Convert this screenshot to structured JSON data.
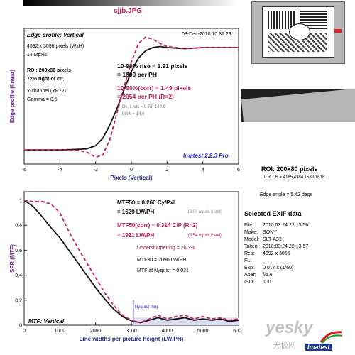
{
  "file_title": "cjjb.JPG",
  "edge": {
    "panel_title": "Edge profile: Vertical",
    "date": "03-Dec-2010 10:31:23",
    "dims": "4592 x 3056 pixels (WxH)",
    "mpxls": "14 Mpxls",
    "roi": "ROI: 200x80 pixels",
    "pos": "72% right of ctr.",
    "channel": "Y-channel  (YR72)",
    "gamma": "Gamma = 0.5",
    "rise1": "10-90% rise = 1.91 pixels",
    "rise2": "= 1600 per PH",
    "corr1": "10-90%(corr) = 1.49 pixels",
    "corr2": "= 2054 per PH  (R=2)",
    "dk": "Dk, lt lvls = 9.78, 142.9",
    "ltdk": "Lt/dk = 14.6",
    "brand": "Imatest 2.2.3 Pro",
    "xlabel": "Pixels (Vertical)",
    "ylabel": "Edge profile (linear)"
  },
  "mtf": {
    "panel_title": "MTF: Vertical",
    "mtf50": "MTF50 = 0.266 Cy/Pxl",
    "mtf50b": "= 1629 LW/PH",
    "ideal1": "[3.99 mpxls ideal]",
    "mtf50c": "MTF50(corr) = 0.314 C/P  (R=2)",
    "mtf50d": "= 1921 LW/PH",
    "ideal2": "[5.54 mpxls ideal]",
    "under": "Undersharpening = 20.3%",
    "mtf30": "MTF30 = 2096 LW/PH",
    "nyq": "MTF at Nyquist = 0.031",
    "nyq_label": "Nyquist freq.",
    "xlabel": "Line widths per picture height (LW/PH)",
    "ylabel": "SFR (MTF)"
  },
  "roi_info": {
    "roi": "ROI: 200x80 pixels",
    "lrtb": "L R T B = 4185 4384  1539 1618",
    "angle": "Edge angle = 5.42 degs"
  },
  "exif": {
    "title": "Selected EXIF data",
    "rows": [
      {
        "k": "File:",
        "v": "2010:03:24 22:13:56"
      },
      {
        "k": "Make:",
        "v": "SONY"
      },
      {
        "k": "Model:",
        "v": "SLT-A33"
      },
      {
        "k": "Taken:",
        "v": "2010:03:24 22:13:57"
      },
      {
        "k": "Res:",
        "v": "4592 x 3056"
      },
      {
        "k": "FL:",
        "v": ""
      },
      {
        "k": "Exp:",
        "v": "0.017 s  (1/60)"
      },
      {
        "k": "Aper:",
        "v": "f/5.6"
      },
      {
        "k": "ISO:",
        "v": "100"
      }
    ]
  },
  "watermark": {
    "site": "yesky",
    "cn": "天极网",
    "imatest": "Imatest"
  },
  "colors": {
    "black": "#111111",
    "pink": "#c8205e",
    "accent": "#2a2ad0"
  },
  "chart_data": [
    {
      "type": "line",
      "title": "Edge profile: Vertical",
      "xlabel": "Pixels (Vertical)",
      "ylabel": "Edge profile (linear)",
      "xlim": [
        -6,
        6
      ],
      "ylim": [
        0,
        1.2
      ],
      "xticks": [
        -6,
        -4,
        -2,
        0,
        2,
        4,
        6
      ],
      "series": [
        {
          "name": "10-90% rise",
          "color": "#111111",
          "x": [
            -6,
            -4,
            -3,
            -2.5,
            -2,
            -1.6,
            -1.2,
            -0.8,
            -0.4,
            0,
            0.4,
            0.8,
            1.2,
            1.6,
            2,
            3,
            4,
            5,
            6
          ],
          "y": [
            0.02,
            0.02,
            0.025,
            0.03,
            0.06,
            0.13,
            0.26,
            0.42,
            0.6,
            0.77,
            0.9,
            0.97,
            1.0,
            1.01,
            1.0,
            0.99,
            1.0,
            1.0,
            1.0
          ]
        },
        {
          "name": "10-90%(corr)",
          "color": "#c8205e",
          "x": [
            -6,
            -4,
            -3,
            -2.5,
            -2,
            -1.6,
            -1.2,
            -0.8,
            -0.4,
            0,
            0.4,
            0.8,
            1.2,
            1.6,
            2,
            3,
            4,
            5,
            6
          ],
          "y": [
            0.02,
            0.02,
            0.015,
            0.0,
            -0.05,
            -0.03,
            0.12,
            0.38,
            0.63,
            0.86,
            1.04,
            1.1,
            1.08,
            1.04,
            1.01,
            0.99,
            1.0,
            1.0,
            1.0
          ]
        }
      ]
    },
    {
      "type": "line",
      "title": "MTF: Vertical",
      "xlabel": "Line widths per picture height (LW/PH)",
      "ylabel": "SFR (MTF)",
      "xlim": [
        0,
        6000
      ],
      "ylim": [
        0,
        1
      ],
      "xticks": [
        0,
        1000,
        2000,
        3000,
        4000,
        5000,
        6000
      ],
      "yticks": [
        0,
        0.2,
        0.4,
        0.6,
        0.8,
        1
      ],
      "nyquist_x": 3056,
      "series": [
        {
          "name": "MTF",
          "color": "#111111",
          "x": [
            0,
            250,
            500,
            750,
            1000,
            1250,
            1500,
            1750,
            2000,
            2250,
            2500,
            2750,
            3000,
            3250,
            3500,
            3750,
            4000,
            4250,
            4500,
            4750,
            5000,
            5250,
            5500,
            5750,
            6000
          ],
          "y": [
            1.0,
            0.95,
            0.87,
            0.78,
            0.7,
            0.6,
            0.5,
            0.4,
            0.3,
            0.21,
            0.13,
            0.07,
            0.035,
            0.02,
            0.04,
            0.06,
            0.04,
            0.05,
            0.06,
            0.04,
            0.05,
            0.04,
            0.05,
            0.03,
            0.04
          ]
        },
        {
          "name": "MTF(corr)",
          "color": "#c8205e",
          "x": [
            0,
            250,
            500,
            750,
            1000,
            1250,
            1500,
            1750,
            2000,
            2250,
            2500,
            2750,
            3000,
            3250,
            3500,
            3750,
            4000,
            4250,
            4500,
            4750,
            5000,
            5250,
            5500,
            5750,
            6000
          ],
          "y": [
            1.0,
            0.99,
            0.99,
            0.97,
            0.9,
            0.75,
            0.62,
            0.5,
            0.38,
            0.26,
            0.16,
            0.08,
            0.04,
            0.02,
            0.05,
            0.08,
            0.05,
            0.07,
            0.08,
            0.05,
            0.07,
            0.05,
            0.06,
            0.04,
            0.05
          ]
        }
      ]
    }
  ]
}
